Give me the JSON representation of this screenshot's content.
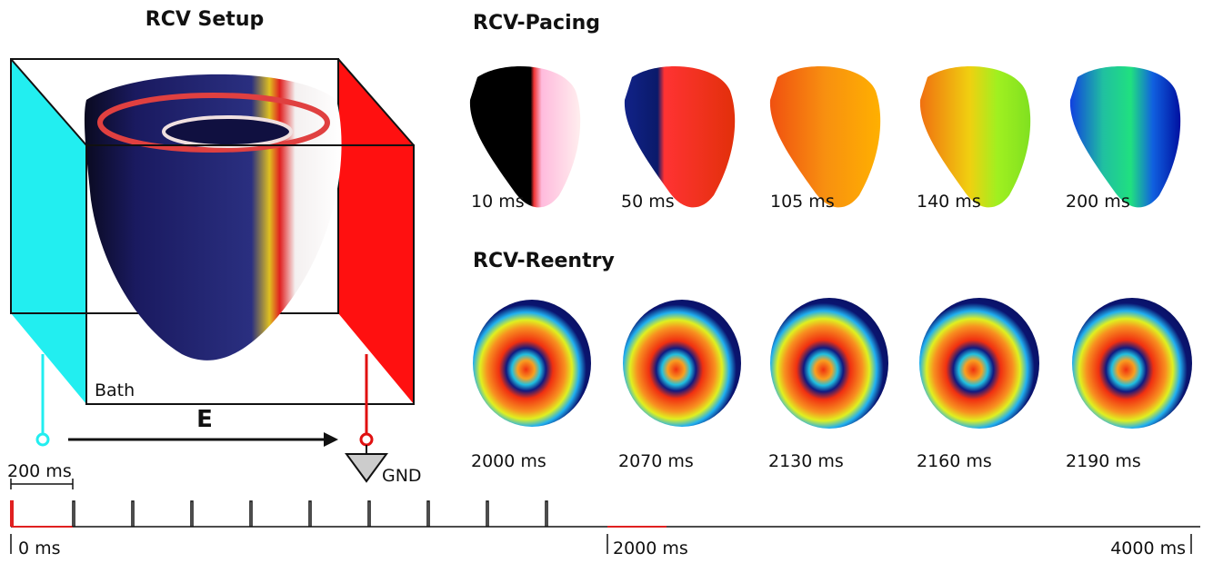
{
  "setup": {
    "title": "RCV Setup",
    "bath": "Bath",
    "field": "E",
    "ground": "GND"
  },
  "timeline": {
    "scale": "200 ms",
    "start": "0 ms",
    "mid": "2000 ms",
    "end": "4000 ms"
  },
  "pacing": {
    "title": "RCV-Pacing",
    "frames": [
      "10 ms",
      "50 ms",
      "105 ms",
      "140 ms",
      "200 ms"
    ]
  },
  "reentry": {
    "title": "RCV-Reentry",
    "frames": [
      "2000 ms",
      "2070 ms",
      "2130 ms",
      "2160 ms",
      "2190 ms"
    ]
  }
}
